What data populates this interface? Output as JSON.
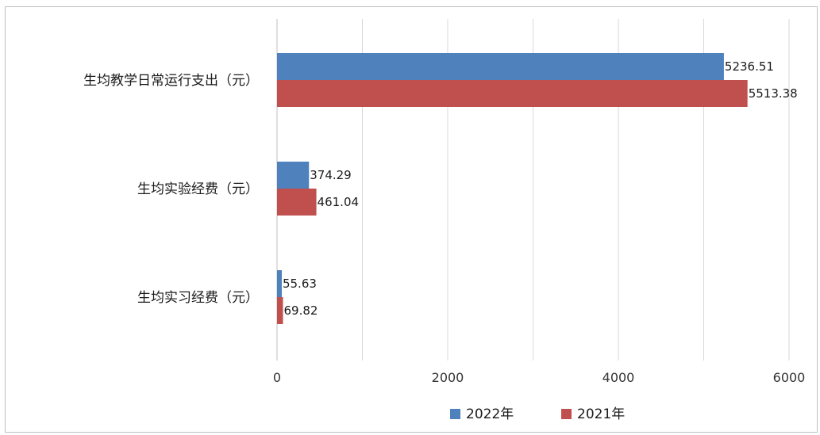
{
  "chart_data": {
    "type": "bar",
    "orientation": "horizontal",
    "categories": [
      "生均教学日常运行支出（元）",
      "生均实验经费（元）",
      "生均实习经费（元）"
    ],
    "series": [
      {
        "name": "2022年",
        "color": "#4f81bd",
        "values": [
          5236.51,
          374.29,
          55.63
        ],
        "labels": [
          "5236.51",
          "374.29",
          "55.63"
        ]
      },
      {
        "name": "2021年",
        "color": "#c0504d",
        "values": [
          5513.38,
          461.04,
          69.82
        ],
        "labels": [
          "5513.38",
          "461.04",
          "69.82"
        ]
      }
    ],
    "xlim": [
      0,
      6000
    ],
    "xticks": [
      0,
      2000,
      4000,
      6000
    ],
    "xtick_labels": [
      "0",
      "2000",
      "4000",
      "6000"
    ],
    "grid": true,
    "legend_position": "bottom"
  }
}
